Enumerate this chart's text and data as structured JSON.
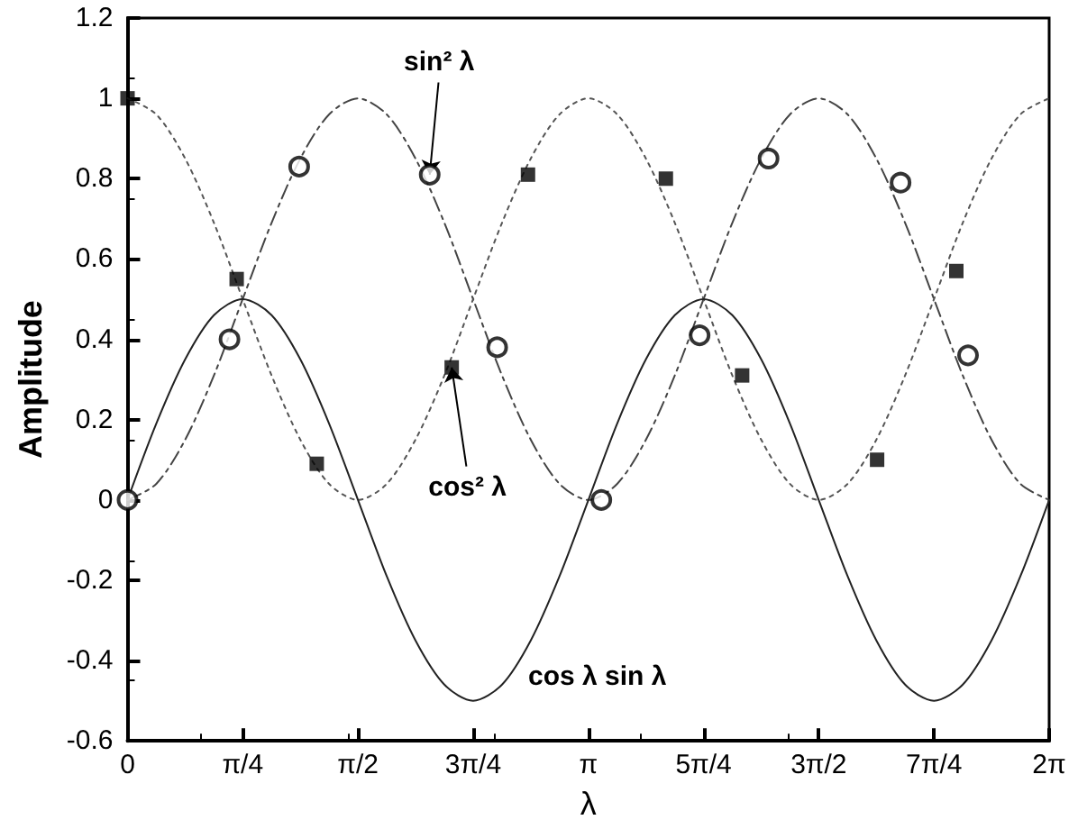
{
  "chart_data": {
    "type": "line",
    "xlabel": "λ",
    "ylabel": "Amplitude",
    "x": [
      0,
      0.196,
      0.393,
      0.589,
      0.785,
      0.982,
      1.178,
      1.374,
      1.571,
      1.767,
      1.963,
      2.16,
      2.356,
      2.553,
      2.749,
      2.945,
      3.142,
      3.338,
      3.534,
      3.731,
      3.927,
      4.123,
      4.32,
      4.516,
      4.712,
      4.909,
      5.105,
      5.301,
      5.498,
      5.694,
      5.89,
      6.087,
      6.283
    ],
    "series": [
      {
        "color": "#444444",
        "line_style": "dashed",
        "marker": "none",
        "values": [
          0,
          0.04,
          0.15,
          0.31,
          0.5,
          0.69,
          0.85,
          0.96,
          1,
          0.96,
          0.85,
          0.69,
          0.5,
          0.31,
          0.15,
          0.04,
          0,
          0.04,
          0.15,
          0.31,
          0.5,
          0.69,
          0.85,
          0.96,
          1,
          0.96,
          0.85,
          0.69,
          0.5,
          0.31,
          0.15,
          0.04,
          0
        ]
      },
      {
        "color": "#555555",
        "line_style": "dotted",
        "marker": "none",
        "values": [
          1,
          0.96,
          0.85,
          0.69,
          0.5,
          0.31,
          0.15,
          0.04,
          0,
          0.04,
          0.15,
          0.31,
          0.5,
          0.69,
          0.85,
          0.96,
          1,
          0.96,
          0.85,
          0.69,
          0.5,
          0.31,
          0.15,
          0.04,
          0,
          0.04,
          0.15,
          0.31,
          0.5,
          0.69,
          0.85,
          0.96,
          1
        ]
      },
      {
        "color": "#222222",
        "line_style": "solid",
        "marker": "none",
        "values": [
          0,
          0.19,
          0.35,
          0.46,
          0.5,
          0.46,
          0.35,
          0.19,
          0,
          -0.19,
          -0.35,
          -0.46,
          -0.5,
          -0.46,
          -0.35,
          -0.19,
          0,
          0.19,
          0.35,
          0.46,
          0.5,
          0.46,
          0.35,
          0.19,
          0,
          -0.19,
          -0.35,
          -0.46,
          -0.5,
          -0.46,
          -0.35,
          -0.19,
          0
        ]
      },
      {
        "type": "scatter",
        "color": "#000000",
        "marker": "circle",
        "x": [
          0,
          0.695,
          1.17,
          2.06,
          2.52,
          3.23,
          3.9,
          4.37,
          5.27,
          5.73
        ],
        "values": [
          0,
          0.4,
          0.83,
          0.81,
          0.38,
          0,
          0.41,
          0.85,
          0.79,
          0.36
        ]
      },
      {
        "type": "scatter",
        "color": "#000000",
        "marker": "square",
        "x": [
          0,
          0.744,
          1.29,
          2.21,
          2.73,
          3.67,
          4.19,
          5.11,
          5.65
        ],
        "values": [
          1,
          0.55,
          0.09,
          0.33,
          0.81,
          0.8,
          0.31,
          0.1,
          0.57
        ]
      }
    ],
    "annotations": [
      {
        "text": "sin² λ",
        "x": 2.06,
        "y": 0.81
      },
      {
        "text": "cos² λ",
        "x": 2.21,
        "y": 0.33
      },
      "cos λ sin λ"
    ],
    "xlim": [
      0,
      6.283
    ],
    "xticks": [
      0,
      {
        "value": 0.785,
        "label": "π/4"
      },
      {
        "value": 1.571,
        "label": "π/2"
      },
      {
        "value": 2.356,
        "label": "3π/4"
      },
      {
        "value": 3.142,
        "label": "π"
      },
      {
        "value": 3.927,
        "label": "5π/4"
      },
      {
        "value": 4.712,
        "label": "3π/2"
      },
      {
        "value": 5.498,
        "label": "7π/4"
      },
      {
        "value": 6.283,
        "label": "2π"
      }
    ],
    "ylim": [
      -0.6,
      1.2
    ],
    "yticks": [
      -0.6,
      -0.4,
      -0.2,
      0,
      0.2,
      0.4,
      0.6,
      0.8,
      1,
      1.2
    ],
    "grid": false
  }
}
